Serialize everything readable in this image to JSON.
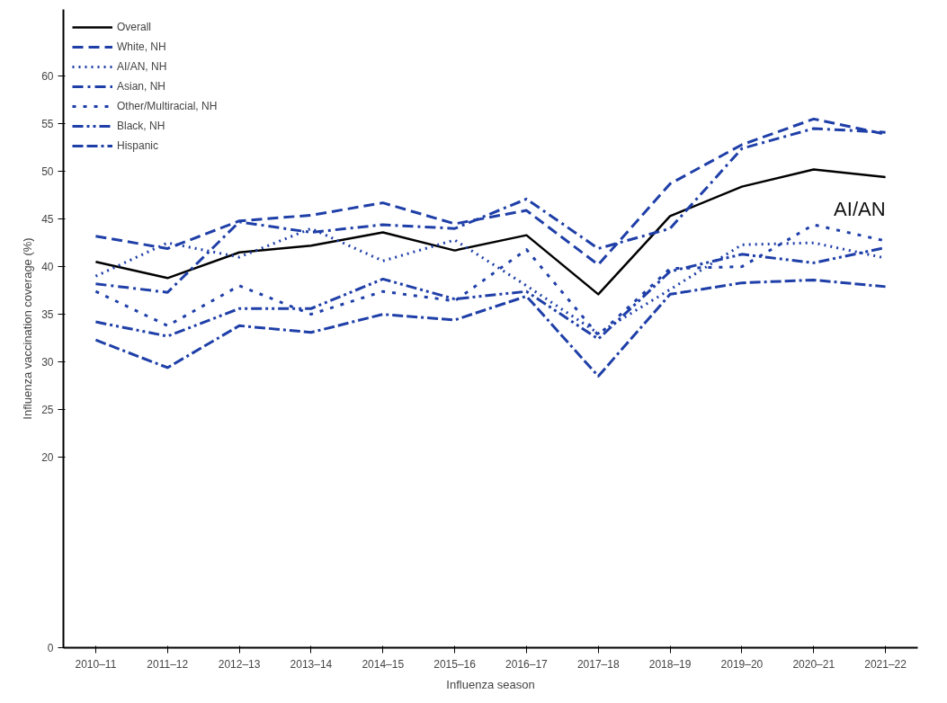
{
  "chart_data": {
    "type": "line",
    "xlabel": "Influenza season",
    "ylabel": "Influenza vaccination coverage (%)",
    "categories": [
      "2010–11",
      "2011–12",
      "2012–13",
      "2013–14",
      "2014–15",
      "2015–16",
      "2016–17",
      "2017–18",
      "2018–19",
      "2019–20",
      "2020–21",
      "2021–22"
    ],
    "ylim": [
      0,
      67
    ],
    "yticks": [
      0,
      20,
      25,
      30,
      35,
      40,
      45,
      50,
      55,
      60
    ],
    "grid": false,
    "legend": "top left",
    "marker": "none",
    "annotations": [
      "AI/AN"
    ],
    "series": [
      {
        "name": "Overall",
        "color": "#000000",
        "line_style": "solid",
        "values": [
          40.5,
          38.8,
          41.5,
          42.2,
          43.6,
          41.7,
          43.3,
          37.1,
          45.3,
          48.4,
          50.2,
          49.4
        ]
      },
      {
        "name": "White, NH",
        "color": "#1f3fa8",
        "line_style": "dashed",
        "values": [
          43.2,
          41.9,
          44.8,
          45.4,
          46.7,
          44.5,
          45.9,
          40.2,
          48.7,
          52.8,
          55.5,
          53.9
        ]
      },
      {
        "name": "AI/AN, NH",
        "color": "#1f3fa8",
        "line_style": "dotted",
        "values": [
          39.0,
          42.5,
          41.0,
          44.0,
          40.6,
          42.8,
          38.0,
          33.0,
          37.6,
          42.3,
          42.5,
          40.9
        ]
      },
      {
        "name": "Asian, NH",
        "color": "#1f3fa8",
        "line_style": "dashdot",
        "values": [
          38.2,
          37.3,
          44.7,
          43.6,
          44.4,
          44.0,
          47.1,
          41.9,
          44.0,
          52.4,
          54.5,
          54.1
        ]
      },
      {
        "name": "Other/Multiracial, NH",
        "color": "#1f3fa8",
        "line_style": "shortdash",
        "values": [
          37.4,
          33.8,
          38.0,
          35.0,
          37.4,
          36.4,
          41.8,
          32.8,
          39.8,
          40.0,
          44.4,
          42.7
        ]
      },
      {
        "name": "Black, NH",
        "color": "#1f3fa8",
        "line_style": "dashdotdot",
        "values": [
          34.2,
          32.7,
          35.6,
          35.6,
          38.7,
          36.6,
          37.4,
          32.4,
          39.5,
          41.3,
          40.4,
          42.0
        ]
      },
      {
        "name": "Hispanic",
        "color": "#1f3fa8",
        "line_style": "dashdashdot",
        "values": [
          32.3,
          29.4,
          33.8,
          33.1,
          35.0,
          34.4,
          36.9,
          28.5,
          37.1,
          38.3,
          38.6,
          37.9
        ]
      }
    ]
  }
}
